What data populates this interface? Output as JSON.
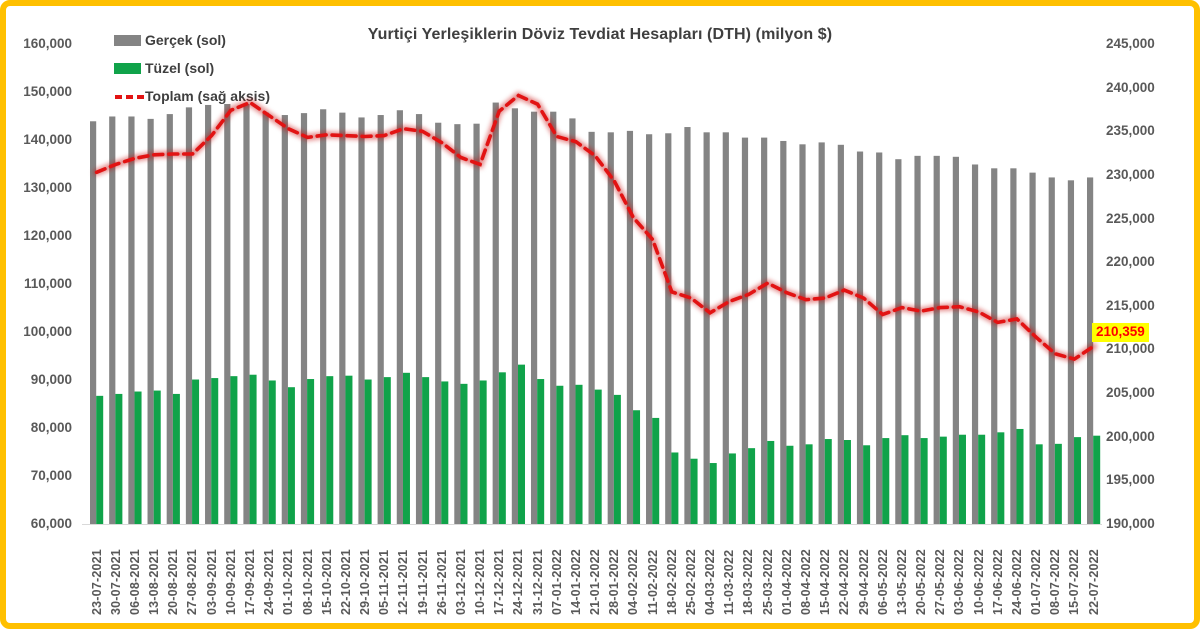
{
  "chart_data": {
    "type": "combo-bar-line",
    "title": "Yurtiçi Yerleşiklerin Döviz Tevdiat Hesapları (DTH) (milyon $)",
    "grid": false,
    "legend_position": "top-left",
    "categories": [
      "23-07-2021",
      "30-07-2021",
      "06-08-2021",
      "13-08-2021",
      "20-08-2021",
      "27-08-2021",
      "03-09-2021",
      "10-09-2021",
      "17-09-2021",
      "24-09-2021",
      "01-10-2021",
      "08-10-2021",
      "15-10-2021",
      "22-10-2021",
      "29-10-2021",
      "05-11-2021",
      "12-11-2021",
      "19-11-2021",
      "26-11-2021",
      "03-12-2021",
      "10-12-2021",
      "17-12-2021",
      "24-12-2021",
      "31-12-2021",
      "07-01-2022",
      "14-01-2022",
      "21-01-2022",
      "28-01-2022",
      "04-02-2022",
      "11-02-2022",
      "18-02-2022",
      "25-02-2022",
      "04-03-2022",
      "11-03-2022",
      "18-03-2022",
      "25-03-2022",
      "01-04-2022",
      "08-04-2022",
      "15-04-2022",
      "22-04-2022",
      "29-04-2022",
      "06-05-2022",
      "13-05-2022",
      "20-05-2022",
      "27-05-2022",
      "03-06-2022",
      "10-06-2022",
      "17-06-2022",
      "24-06-2022",
      "01-07-2022",
      "08-07-2022",
      "15-07-2022",
      "22-07-2022"
    ],
    "series": [
      {
        "name": "Gerçek (sol)",
        "type": "bar",
        "axis": "left",
        "color": "#848484",
        "values": [
          143900,
          144900,
          144900,
          144400,
          145400,
          146800,
          147300,
          147500,
          147500,
          145700,
          145200,
          145600,
          146400,
          145700,
          144700,
          145200,
          146200,
          145400,
          143600,
          143300,
          143400,
          147800,
          146600,
          145900,
          145900,
          144500,
          141700,
          141600,
          141900,
          141200,
          141400,
          142700,
          141600,
          141600,
          140500,
          140500,
          139800,
          139100,
          139500,
          139000,
          137600,
          137400,
          136000,
          136700,
          136700,
          136500,
          134900,
          134100,
          134100,
          133200,
          132200,
          131600,
          132200
        ]
      },
      {
        "name": "Tüzel (sol)",
        "type": "bar",
        "axis": "left",
        "color": "#10A34A",
        "values": [
          86700,
          87100,
          87600,
          87800,
          87100,
          90100,
          90400,
          90800,
          91100,
          89900,
          88500,
          90200,
          90800,
          90900,
          90100,
          90600,
          91500,
          90600,
          89700,
          89200,
          89900,
          91600,
          93200,
          90200,
          88800,
          89000,
          88000,
          86900,
          83700,
          82100,
          74900,
          73600,
          72700,
          74700,
          75800,
          77300,
          76300,
          76600,
          77700,
          77500,
          76400,
          77900,
          78500,
          77900,
          78200,
          78600,
          78600,
          79100,
          79800,
          76600,
          76700,
          78100,
          78400
        ]
      },
      {
        "name": "Toplam (sağ aksis)",
        "type": "line",
        "axis": "right",
        "color": "#E21313",
        "style": "dashed",
        "values": [
          230300,
          231200,
          231900,
          232300,
          232400,
          232400,
          234500,
          237400,
          238300,
          236800,
          235300,
          234300,
          234600,
          234500,
          234400,
          234500,
          235300,
          235000,
          233700,
          232000,
          231200,
          237300,
          239100,
          238100,
          234400,
          233800,
          232200,
          229300,
          225100,
          222600,
          216600,
          215900,
          214200,
          215500,
          216300,
          217600,
          216500,
          215700,
          215900,
          216800,
          215900,
          214000,
          214800,
          214400,
          214800,
          214900,
          214300,
          213100,
          213500,
          211400,
          209500,
          208900,
          210359
        ]
      }
    ],
    "left_axis": {
      "min": 60000,
      "max": 160000,
      "step": 10000,
      "ticks": [
        "160,000",
        "150,000",
        "140,000",
        "130,000",
        "120,000",
        "110,000",
        "100,000",
        "90,000",
        "80,000",
        "70,000",
        "60,000"
      ]
    },
    "right_axis": {
      "min": 190000,
      "max": 245000,
      "step": 5000,
      "ticks": [
        "245,000",
        "240,000",
        "235,000",
        "230,000",
        "225,000",
        "220,000",
        "215,000",
        "210,000",
        "205,000",
        "200,000",
        "195,000",
        "190,000"
      ]
    },
    "annotation": {
      "text": "210,359",
      "bg": "#FFFF00",
      "color": "#FF0000",
      "points_to": "last value of Toplam"
    }
  },
  "colors": {
    "border": "#FFC000",
    "bar_gray": "#848484",
    "bar_green": "#10A34A",
    "line_red": "#E21313",
    "axis_text": "#595959",
    "title_text": "#3f3f3f"
  }
}
